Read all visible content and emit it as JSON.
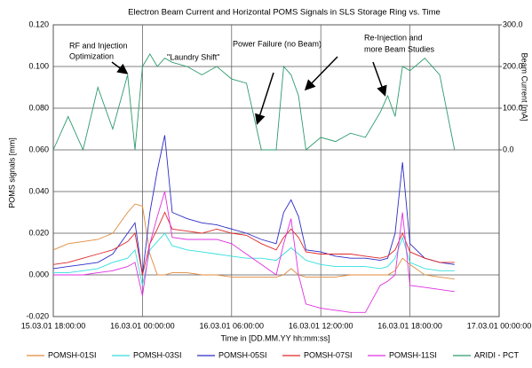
{
  "chart_data": {
    "type": "line",
    "title": "Electron Beam Current and Horizontal POMS Signals in SLS Storage Ring  vs.  Time",
    "xlabel": "Time in [DD.MM.YY  hh:mm:ss]",
    "ylabel": "POMS signals  [mm]",
    "y2label": "Beam Current [mA]",
    "x": [
      0,
      1,
      2,
      3,
      4,
      5,
      5.5,
      6,
      6.5,
      7,
      7.5,
      8,
      9,
      10,
      11,
      12,
      13,
      14,
      15,
      15.5,
      16,
      16.5,
      17,
      18,
      19,
      20,
      21,
      22,
      22.5,
      23,
      23.5,
      24,
      25,
      26,
      27
    ],
    "xlim": [
      0,
      30
    ],
    "xticks": [
      {
        "value": 0,
        "label": "15.03.01 18:00:00"
      },
      {
        "value": 6,
        "label": "16.03.01 00:00:00"
      },
      {
        "value": 12,
        "label": "16.03.01 06:00:00"
      },
      {
        "value": 18,
        "label": "16.03.01 12:00:00"
      },
      {
        "value": 24,
        "label": "16.03.01 18:00:00"
      },
      {
        "value": 30,
        "label": "17.03.01 00:00:00"
      }
    ],
    "ylim": [
      -0.02,
      0.12
    ],
    "yticks": [
      {
        "value": -0.02,
        "label": "-0.020"
      },
      {
        "value": 0,
        "label": "0.000"
      },
      {
        "value": 0.02,
        "label": "0.020"
      },
      {
        "value": 0.04,
        "label": "0.040"
      },
      {
        "value": 0.06,
        "label": "0.060"
      },
      {
        "value": 0.08,
        "label": "0.080"
      },
      {
        "value": 0.1,
        "label": "0.100"
      },
      {
        "value": 0.12,
        "label": "0.120"
      }
    ],
    "y2lim": [
      -400,
      300
    ],
    "y2ticks": [
      {
        "value": 0,
        "label": "0.0"
      },
      {
        "value": 100,
        "label": "100.0"
      },
      {
        "value": 200,
        "label": "200.0"
      },
      {
        "value": 300,
        "label": "300.0"
      }
    ],
    "grid": true,
    "legend": "bottom",
    "annotations": [
      {
        "text": "RF and Injection"
      },
      {
        "text": "Optimization"
      },
      {
        "text": "\"Laundry Shift\""
      },
      {
        "text": "Power Failure (no Beam)"
      },
      {
        "text": "Re-Injection and"
      },
      {
        "text": "more Beam Studies"
      }
    ],
    "series": [
      {
        "name": "POMSH-01SI",
        "color": "#e08a3c",
        "values": [
          0.012,
          0.015,
          0.016,
          0.017,
          0.02,
          0.03,
          0.034,
          0.033,
          0.01,
          0.0,
          0.0,
          0.001,
          0.001,
          0.0,
          0.0,
          -0.001,
          -0.001,
          -0.001,
          -0.001,
          0.0,
          0.003,
          0.0,
          -0.001,
          -0.001,
          -0.001,
          0.0,
          0.0,
          0.0,
          0.0,
          0.002,
          0.008,
          0.005,
          0.0,
          -0.001,
          -0.002
        ]
      },
      {
        "name": "POMSH-03SI",
        "color": "#33dede",
        "values": [
          0.001,
          0.001,
          0.002,
          0.003,
          0.006,
          0.008,
          0.012,
          -0.005,
          0.012,
          0.016,
          0.02,
          0.014,
          0.012,
          0.011,
          0.01,
          0.009,
          0.008,
          0.008,
          0.007,
          0.01,
          0.013,
          0.01,
          0.007,
          0.005,
          0.004,
          0.004,
          0.004,
          0.003,
          0.004,
          0.008,
          0.018,
          0.006,
          0.003,
          0.002,
          0.002
        ]
      },
      {
        "name": "POMSH-05SI",
        "color": "#2c2cc8",
        "values": [
          0.003,
          0.004,
          0.005,
          0.006,
          0.01,
          0.02,
          0.025,
          0.0,
          0.03,
          0.05,
          0.067,
          0.03,
          0.027,
          0.025,
          0.024,
          0.022,
          0.02,
          0.017,
          0.015,
          0.03,
          0.036,
          0.028,
          0.012,
          0.011,
          0.009,
          0.008,
          0.008,
          0.007,
          0.008,
          0.02,
          0.054,
          0.015,
          0.008,
          0.006,
          0.005
        ]
      },
      {
        "name": "POMSH-07SI",
        "color": "#e02828",
        "values": [
          0.005,
          0.006,
          0.008,
          0.01,
          0.012,
          0.016,
          0.02,
          0.0,
          0.015,
          0.022,
          0.03,
          0.022,
          0.021,
          0.02,
          0.022,
          0.02,
          0.019,
          0.015,
          0.012,
          0.018,
          0.022,
          0.018,
          0.011,
          0.01,
          0.01,
          0.01,
          0.009,
          0.008,
          0.009,
          0.012,
          0.02,
          0.011,
          0.008,
          0.006,
          0.006
        ]
      },
      {
        "name": "POMSH-11SI",
        "color": "#e030e0",
        "values": [
          0.0,
          0.0,
          0.0,
          0.001,
          0.002,
          0.004,
          0.006,
          -0.01,
          0.015,
          0.028,
          0.04,
          0.018,
          0.017,
          0.017,
          0.017,
          0.015,
          0.01,
          0.005,
          0.0,
          0.015,
          0.027,
          0.0,
          -0.014,
          -0.016,
          -0.017,
          -0.018,
          -0.018,
          -0.005,
          -0.003,
          0.0,
          0.03,
          -0.005,
          -0.006,
          -0.007,
          -0.008
        ]
      },
      {
        "name": "ARIDI - PCT",
        "color": "#2e9a6e",
        "axis": "y2",
        "values": [
          0,
          80,
          0,
          150,
          50,
          180,
          0,
          200,
          230,
          200,
          220,
          210,
          200,
          180,
          200,
          170,
          160,
          0,
          0,
          200,
          180,
          130,
          0,
          30,
          20,
          40,
          30,
          90,
          130,
          80,
          200,
          190,
          220,
          180,
          0
        ]
      }
    ]
  }
}
